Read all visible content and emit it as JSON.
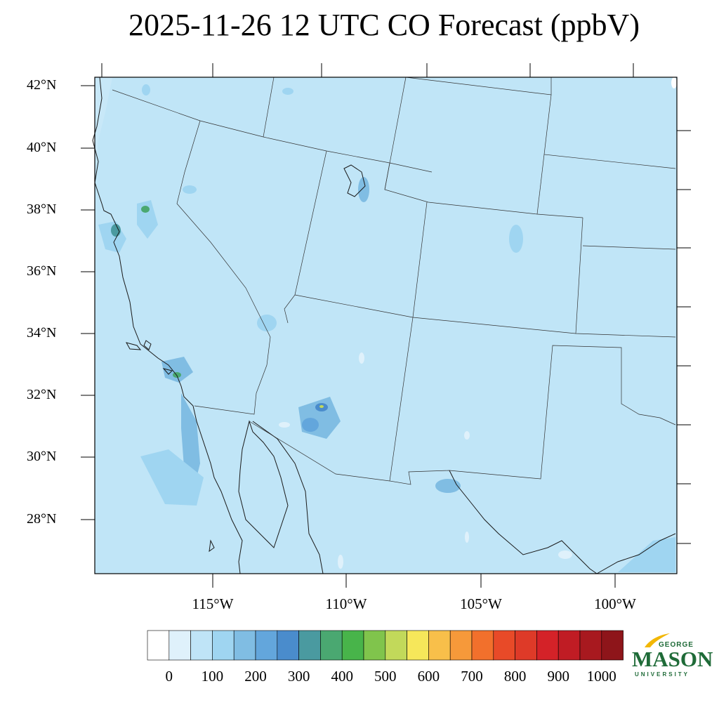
{
  "title": "2025-11-26 12 UTC CO Forecast (ppbV)",
  "lat_labels": [
    "42°N",
    "40°N",
    "38°N",
    "36°N",
    "34°N",
    "32°N",
    "30°N",
    "28°N"
  ],
  "lon_labels": [
    "115°W",
    "110°W",
    "105°W",
    "100°W"
  ],
  "colorbar": {
    "tick_labels": [
      "0",
      "100",
      "200",
      "300",
      "400",
      "500",
      "600",
      "700",
      "800",
      "900",
      "1000"
    ],
    "colors": [
      "#ffffff",
      "#dff1fb",
      "#bfe4f7",
      "#9fd5f1",
      "#80bde3",
      "#63a6dc",
      "#4a8ccc",
      "#4a9aa0",
      "#4aa871",
      "#48b44a",
      "#80c44c",
      "#c2d95a",
      "#f6e75a",
      "#f8bf4a",
      "#f6993a",
      "#f2702c",
      "#e84a28",
      "#de3a28",
      "#d42228",
      "#c01c24",
      "#a8191f",
      "#8e151a"
    ]
  },
  "map": {
    "background_color": "#c0e5f7",
    "region": "US Southwest and northern Mexico"
  },
  "logo": {
    "line1": "GEORGE",
    "line2": "MASON",
    "line3": "UNIVERSITY"
  }
}
